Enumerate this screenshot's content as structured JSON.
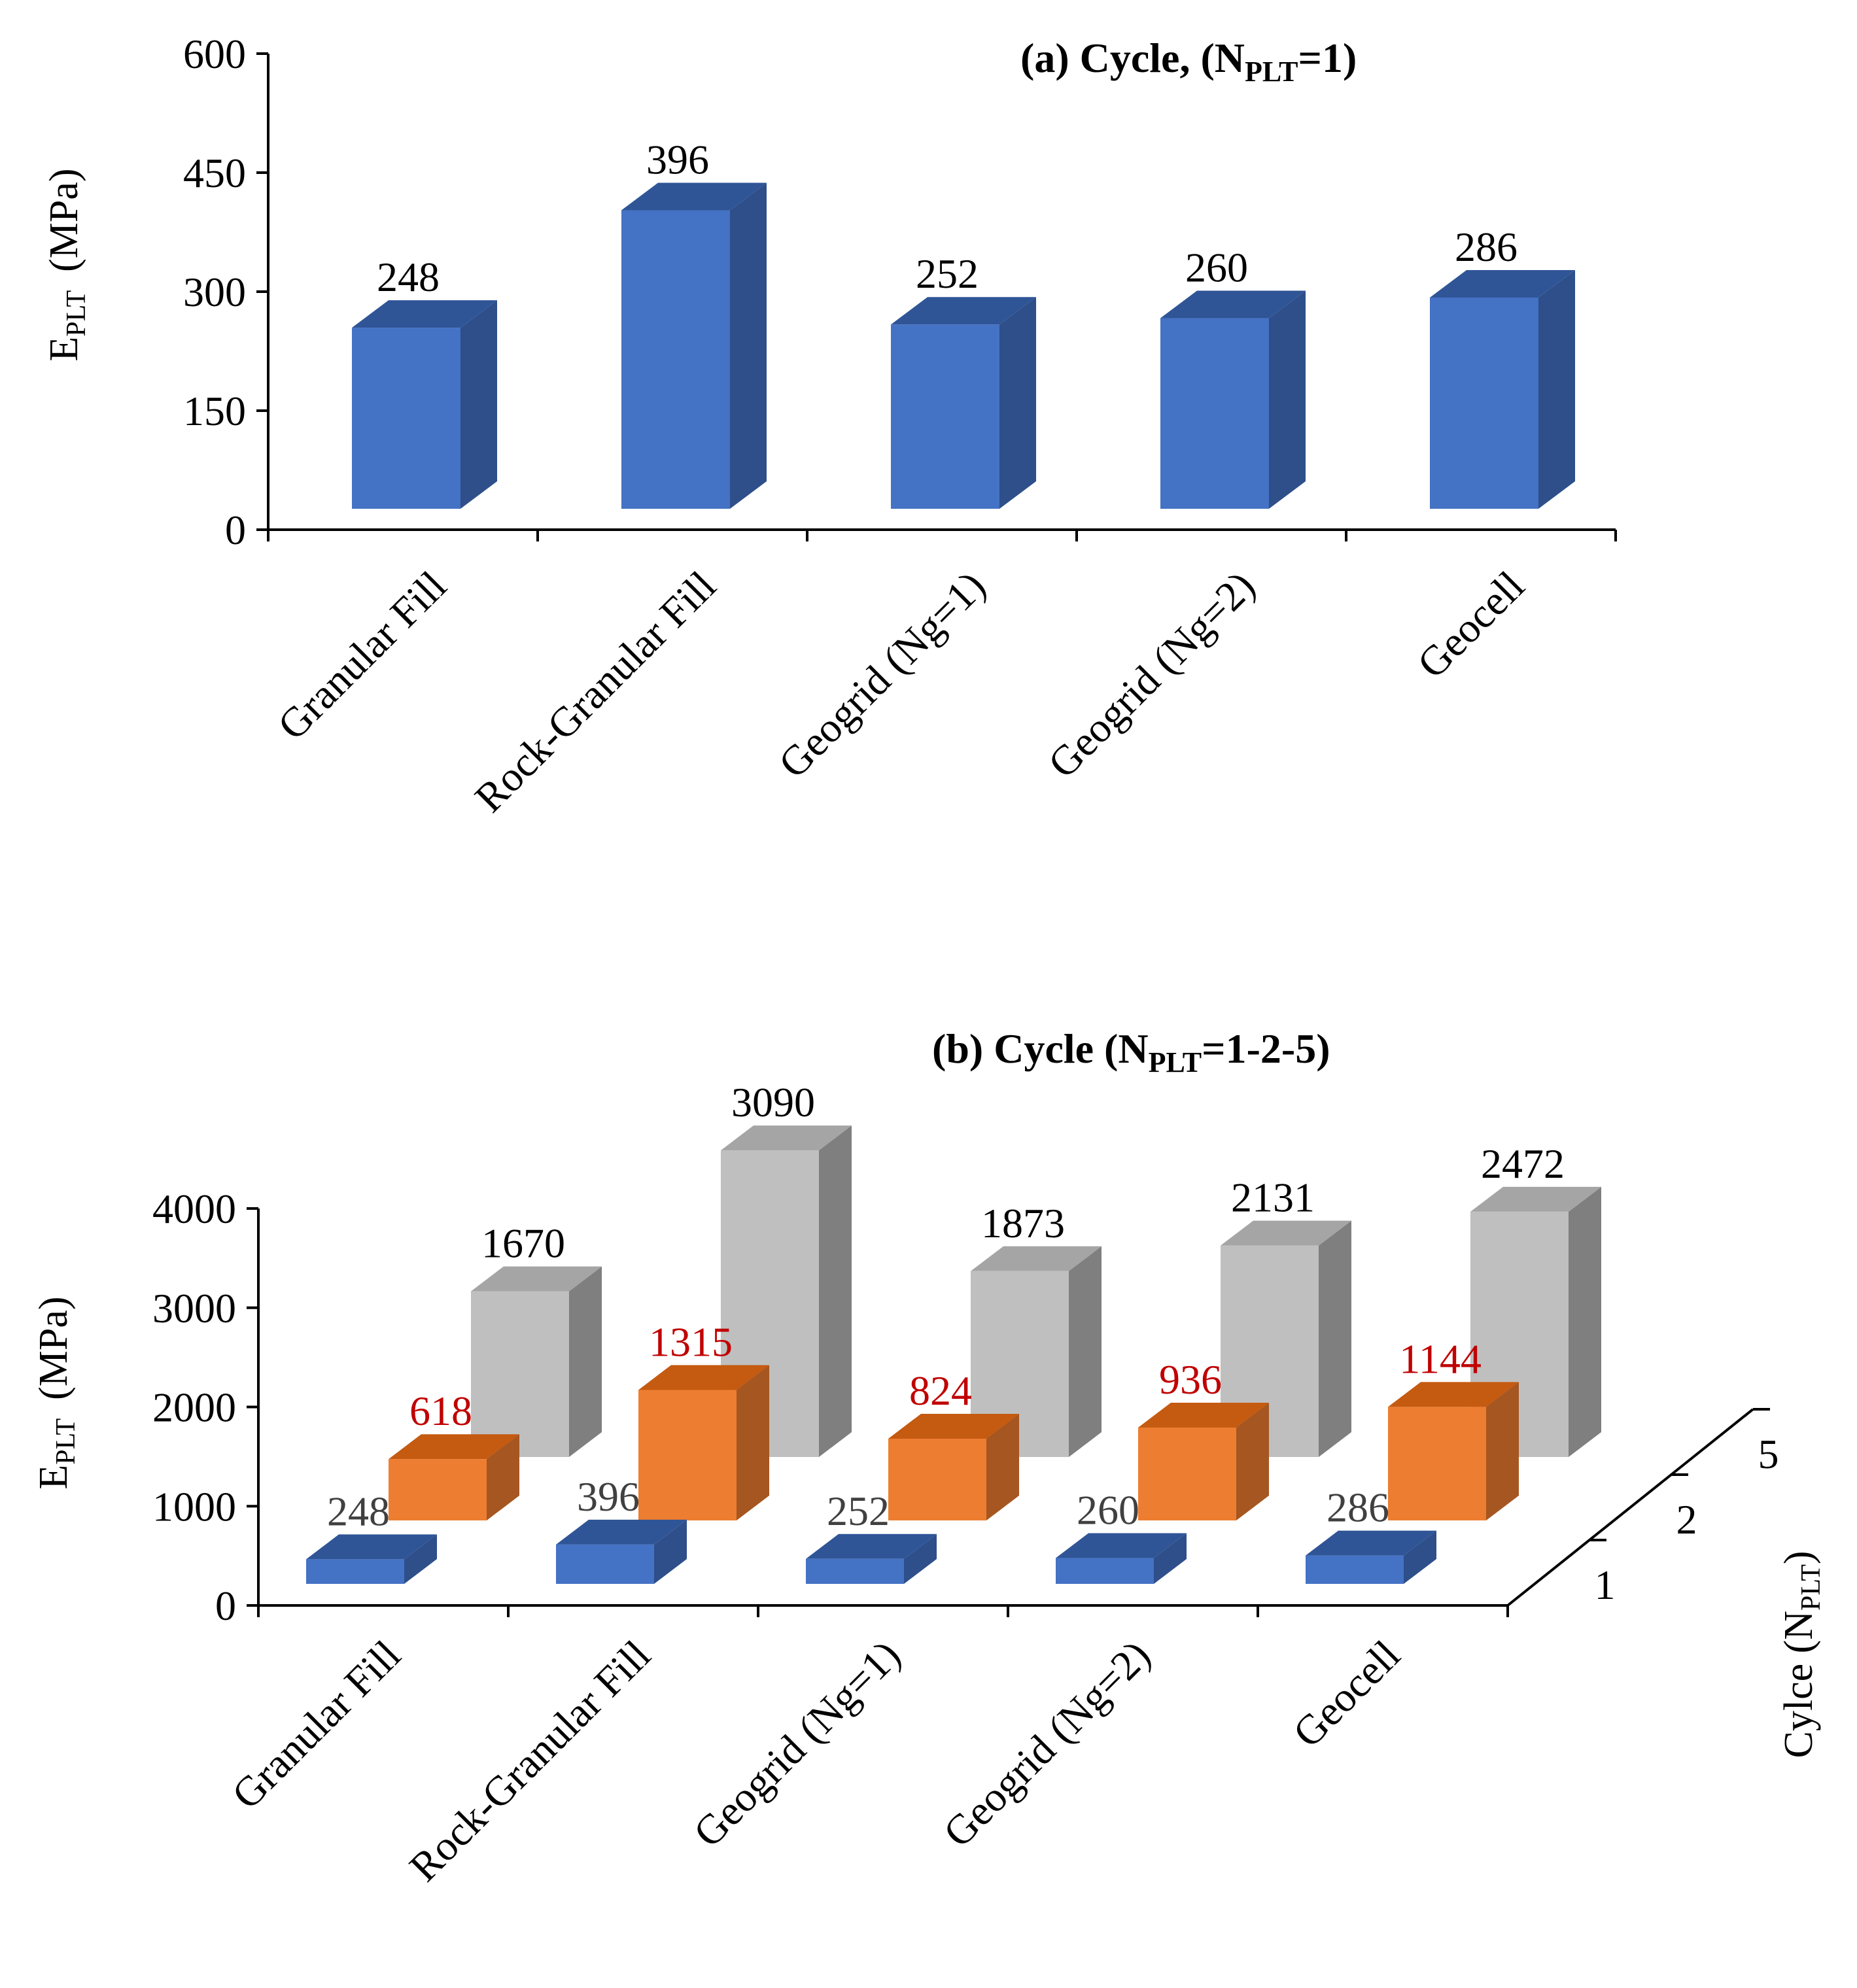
{
  "chart_data": [
    {
      "type": "bar",
      "title": "(a) Cycle, (N",
      "title_sub": "PLT",
      "title_tail": "=1)",
      "ylabel_main": "E",
      "ylabel_sub": "PLT",
      "ylabel_unit": "(MPa)",
      "ylim": [
        0,
        600
      ],
      "yticks": [
        "0",
        "150",
        "300",
        "450",
        "600"
      ],
      "categories": [
        "Granular Fill",
        "Rock-Granular Fill",
        "Geogrid (Ng=1)",
        "Geogrid (Ng=2)",
        "Geocell"
      ],
      "values": [
        248,
        396,
        252,
        260,
        286
      ],
      "data_labels": [
        "248",
        "396",
        "252",
        "260",
        "286"
      ],
      "colors": {
        "front": "#4472C4",
        "side": "#2E4F8A",
        "top": "#2F5597"
      }
    },
    {
      "type": "bar",
      "title": "(b) Cycle (N",
      "title_sub": "PLT",
      "title_tail": "=1-2-5)",
      "ylabel_main": "E",
      "ylabel_sub": "PLT",
      "ylabel_unit": "(MPa)",
      "ylim": [
        0,
        4000
      ],
      "yticks": [
        "0",
        "1000",
        "2000",
        "3000",
        "4000"
      ],
      "zlabel_main": "Cylce (N",
      "zlabel_sub": "PLT",
      "zlabel_tail": ")",
      "categories": [
        "Granular Fill",
        "Rock-Granular Fill",
        "Geogrid (Ng=1)",
        "Geogrid (Ng=2)",
        "Geocell"
      ],
      "series": [
        {
          "name": "1",
          "values": [
            248,
            396,
            252,
            260,
            286
          ],
          "data_labels": [
            "248",
            "396",
            "252",
            "260",
            "286"
          ],
          "label_color": "#404040",
          "colors": {
            "front": "#4472C4",
            "side": "#2E4F8A",
            "top": "#2F5597"
          }
        },
        {
          "name": "2",
          "values": [
            618,
            1315,
            824,
            936,
            1144
          ],
          "data_labels": [
            "618",
            "1315",
            "824",
            "936",
            "1144"
          ],
          "label_color": "#C00000",
          "colors": {
            "front": "#ED7D31",
            "side": "#A65620",
            "top": "#C55A11"
          }
        },
        {
          "name": "5",
          "values": [
            1670,
            3090,
            1873,
            2131,
            2472
          ],
          "data_labels": [
            "1670",
            "3090",
            "1873",
            "2131",
            "2472"
          ],
          "label_color": "#000000",
          "colors": {
            "front": "#BFBFBF",
            "side": "#7F7F7F",
            "top": "#A5A5A5"
          }
        }
      ]
    }
  ]
}
